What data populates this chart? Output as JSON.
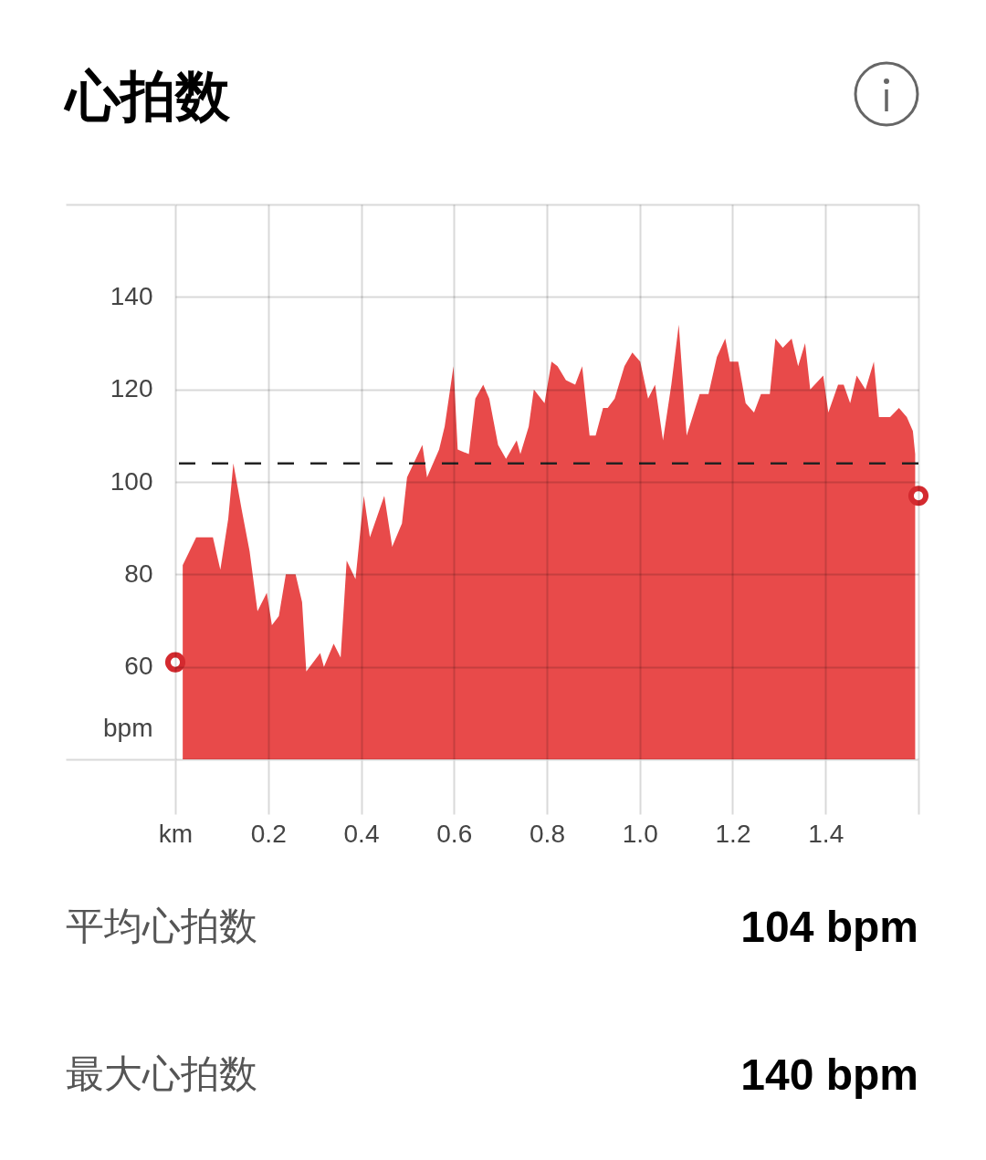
{
  "chart_data": {
    "type": "area",
    "title": "心拍数",
    "ylabel": "bpm",
    "xlim": [
      0,
      1.6
    ],
    "xticks": [
      {
        "value": 0,
        "label": "km"
      },
      0.2,
      0.4,
      0.6,
      0.8,
      {
        "value": 1,
        "label": "1.0"
      },
      1.2,
      1.4,
      {
        "value": 1.6,
        "label": null
      }
    ],
    "ylim": [
      40,
      160
    ],
    "yticks": [
      {
        "value": 40,
        "label": null
      },
      60,
      80,
      100,
      120,
      140,
      {
        "value": 160,
        "label": null
      }
    ],
    "grid": true,
    "series": [
      {
        "color": "#e84a4a",
        "x": [
          0.016,
          0.045,
          0.081,
          0.097,
          0.114,
          0.125,
          0.143,
          0.16,
          0.177,
          0.197,
          0.208,
          0.223,
          0.238,
          0.259,
          0.273,
          0.282,
          0.312,
          0.32,
          0.341,
          0.356,
          0.369,
          0.388,
          0.406,
          0.419,
          0.45,
          0.467,
          0.488,
          0.499,
          0.532,
          0.542,
          0.568,
          0.58,
          0.599,
          0.608,
          0.632,
          0.646,
          0.663,
          0.676,
          0.695,
          0.712,
          0.735,
          0.743,
          0.761,
          0.772,
          0.795,
          0.81,
          0.823,
          0.841,
          0.861,
          0.876,
          0.892,
          0.905,
          0.921,
          0.931,
          0.946,
          0.967,
          0.984,
          1.001,
          1.018,
          1.033,
          1.05,
          1.068,
          1.084,
          1.101,
          1.129,
          1.148,
          1.166,
          1.184,
          1.194,
          1.212,
          1.228,
          1.246,
          1.261,
          1.28,
          1.292,
          1.308,
          1.327,
          1.341,
          1.356,
          1.367,
          1.395,
          1.406,
          1.427,
          1.439,
          1.453,
          1.467,
          1.486,
          1.504,
          1.515,
          1.539,
          1.558,
          1.575,
          1.588,
          1.593
        ],
        "values": [
          82,
          88,
          88,
          81,
          92,
          104,
          94,
          85,
          72,
          76,
          69,
          71,
          80,
          80,
          74,
          59,
          63,
          60,
          65,
          62,
          83,
          79,
          97,
          88,
          97,
          86,
          91,
          101,
          108,
          101,
          107,
          112,
          125,
          107,
          106,
          118,
          121,
          118,
          108,
          105,
          109,
          106,
          112,
          120,
          117,
          126,
          125,
          122,
          121,
          125,
          110,
          110,
          116,
          116,
          118,
          125,
          128,
          126,
          118,
          121,
          109,
          121,
          134,
          110,
          119,
          119,
          127,
          131,
          126,
          126,
          117,
          115,
          119,
          119,
          131,
          129,
          131,
          125,
          130,
          120,
          123,
          115,
          121,
          121,
          117,
          123,
          120,
          126,
          114,
          114,
          116,
          114,
          111,
          106
        ]
      },
      {
        "type": "scatter",
        "color": "#d42a2f",
        "marker": "circle",
        "x": [
          0,
          1.6
        ],
        "values": [
          61,
          97
        ]
      }
    ],
    "ref_lines": [
      {
        "axis": "y",
        "value": 104,
        "color": "#222222",
        "line_style": "dashed"
      }
    ],
    "annotations": [
      "平均心拍数",
      "104 bpm",
      "最大心拍数",
      "140 bpm"
    ]
  }
}
